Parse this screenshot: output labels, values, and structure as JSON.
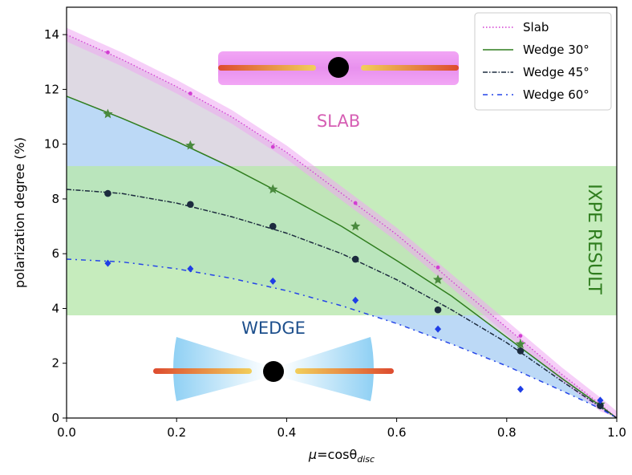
{
  "chart_data": {
    "type": "line",
    "xlabel_parts": {
      "mu": "μ",
      "eq": "=cosθ",
      "sub": "disc"
    },
    "ylabel": "polarization degree (%)",
    "xlim": [
      0.0,
      1.0
    ],
    "ylim": [
      0,
      15
    ],
    "xticks": [
      0.0,
      0.2,
      0.4,
      0.6,
      0.8,
      1.0
    ],
    "xtick_labels": [
      "0.0",
      "0.2",
      "0.4",
      "0.6",
      "0.8",
      "1.0"
    ],
    "yticks": [
      0,
      2,
      4,
      6,
      8,
      10,
      12,
      14
    ],
    "ytick_labels": [
      "0",
      "2",
      "4",
      "6",
      "8",
      "10",
      "12",
      "14"
    ],
    "ixpe_band": {
      "label": "IXPE RESULT",
      "low": 3.75,
      "high": 9.2,
      "color": "#b9e8ae"
    },
    "series": [
      {
        "name": "Slab",
        "color": "#d23dd2",
        "style": "dotted",
        "curve_mu": [
          0.0,
          0.1,
          0.2,
          0.3,
          0.4,
          0.5,
          0.6,
          0.7,
          0.8,
          0.9,
          0.97,
          1.0
        ],
        "curve_pd": [
          14.0,
          13.1,
          12.1,
          11.0,
          9.7,
          8.2,
          6.7,
          5.0,
          3.3,
          1.6,
          0.5,
          0.0
        ],
        "band_halfwidth": 0.25,
        "points_mu": [
          0.075,
          0.225,
          0.375,
          0.525,
          0.675,
          0.825,
          0.97
        ],
        "points_pd": [
          13.35,
          11.85,
          9.9,
          7.85,
          5.5,
          3.0,
          0.6
        ],
        "marker": "dot"
      },
      {
        "name": "Wedge 30°",
        "color": "#2f7d1e",
        "style": "solid",
        "curve_mu": [
          0.0,
          0.1,
          0.2,
          0.3,
          0.4,
          0.5,
          0.6,
          0.7,
          0.8,
          0.9,
          0.97,
          1.0
        ],
        "curve_pd": [
          11.75,
          10.95,
          10.1,
          9.15,
          8.1,
          7.0,
          5.75,
          4.45,
          2.95,
          1.45,
          0.45,
          0.0
        ],
        "points_mu": [
          0.075,
          0.225,
          0.375,
          0.525,
          0.675,
          0.825,
          0.97
        ],
        "points_pd": [
          11.1,
          9.95,
          8.35,
          7.0,
          5.05,
          2.7,
          0.5
        ],
        "marker": "star"
      },
      {
        "name": "Wedge 45°",
        "color": "#1c2b3e",
        "style": "dashdot",
        "curve_mu": [
          0.0,
          0.1,
          0.2,
          0.3,
          0.4,
          0.5,
          0.6,
          0.7,
          0.8,
          0.9,
          0.97,
          1.0
        ],
        "curve_pd": [
          8.35,
          8.2,
          7.85,
          7.35,
          6.75,
          6.0,
          5.05,
          3.95,
          2.75,
          1.35,
          0.4,
          0.0
        ],
        "points_mu": [
          0.075,
          0.225,
          0.375,
          0.525,
          0.675,
          0.825,
          0.97
        ],
        "points_pd": [
          8.2,
          7.8,
          7.0,
          5.8,
          3.95,
          2.45,
          0.45
        ],
        "marker": "circle"
      },
      {
        "name": "Wedge 60°",
        "color": "#2545e8",
        "style": "dashdot_loose",
        "curve_mu": [
          0.0,
          0.1,
          0.2,
          0.3,
          0.4,
          0.5,
          0.6,
          0.7,
          0.8,
          0.9,
          0.97,
          1.0
        ],
        "curve_pd": [
          5.8,
          5.7,
          5.45,
          5.1,
          4.65,
          4.1,
          3.45,
          2.7,
          1.9,
          1.0,
          0.35,
          0.0
        ],
        "points_mu": [
          0.075,
          0.225,
          0.375,
          0.525,
          0.675,
          0.825,
          0.97
        ],
        "points_pd": [
          5.65,
          5.45,
          5.0,
          4.3,
          3.25,
          1.05,
          0.65
        ],
        "marker": "diamond"
      }
    ],
    "annotations": {
      "slab": "SLAB",
      "wedge": "WEDGE"
    }
  }
}
